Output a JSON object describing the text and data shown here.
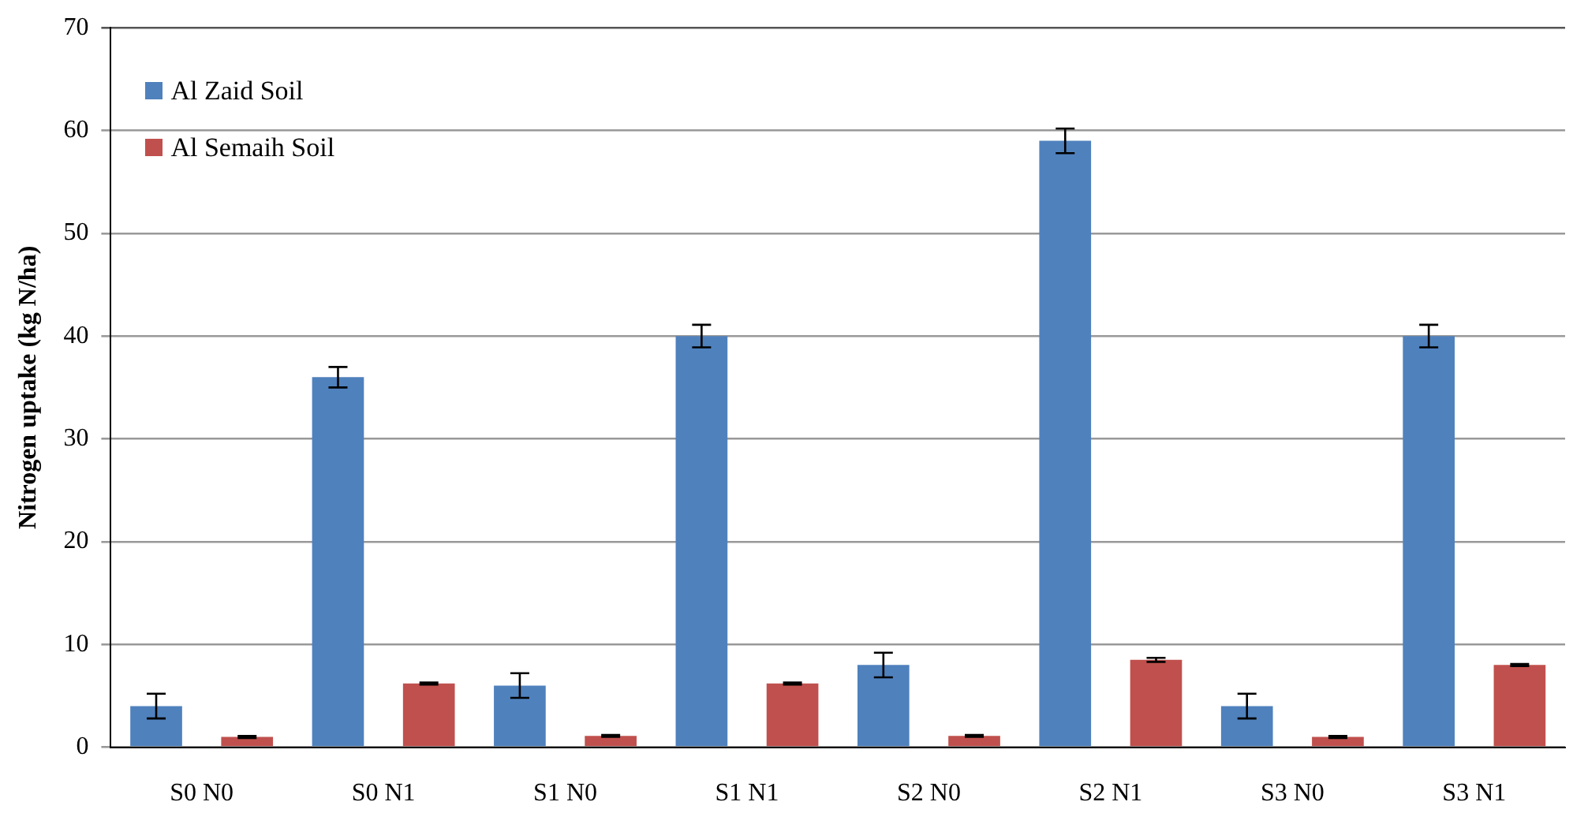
{
  "chart_data": {
    "type": "bar",
    "ylabel": "Nitrogen uptake (kg N/ha)",
    "categories": [
      "S0 N0",
      "S0 N1",
      "S1 N0",
      "S1 N1",
      "S2 N0",
      "S2 N1",
      "S3 N0",
      "S3 N1"
    ],
    "series": [
      {
        "name": "Al Zaid Soil",
        "color": "#4f81bd",
        "values": [
          4,
          36,
          6,
          40,
          8,
          59,
          4,
          40
        ],
        "errors": [
          1.2,
          1,
          1.2,
          1.1,
          1.2,
          1.2,
          1.2,
          1.1
        ]
      },
      {
        "name": "Al Semaih Soil",
        "color": "#c0504d",
        "values": [
          1,
          6.2,
          1.1,
          6.2,
          1.1,
          8.5,
          1,
          8
        ],
        "errors": [
          0.1,
          0.1,
          0.1,
          0.1,
          0.1,
          0.2,
          0.1,
          0.1
        ]
      }
    ],
    "ylim": [
      0,
      70
    ],
    "yticks": [
      0,
      10,
      20,
      30,
      40,
      50,
      60,
      70
    ],
    "grid": "y",
    "legend": "top left"
  }
}
